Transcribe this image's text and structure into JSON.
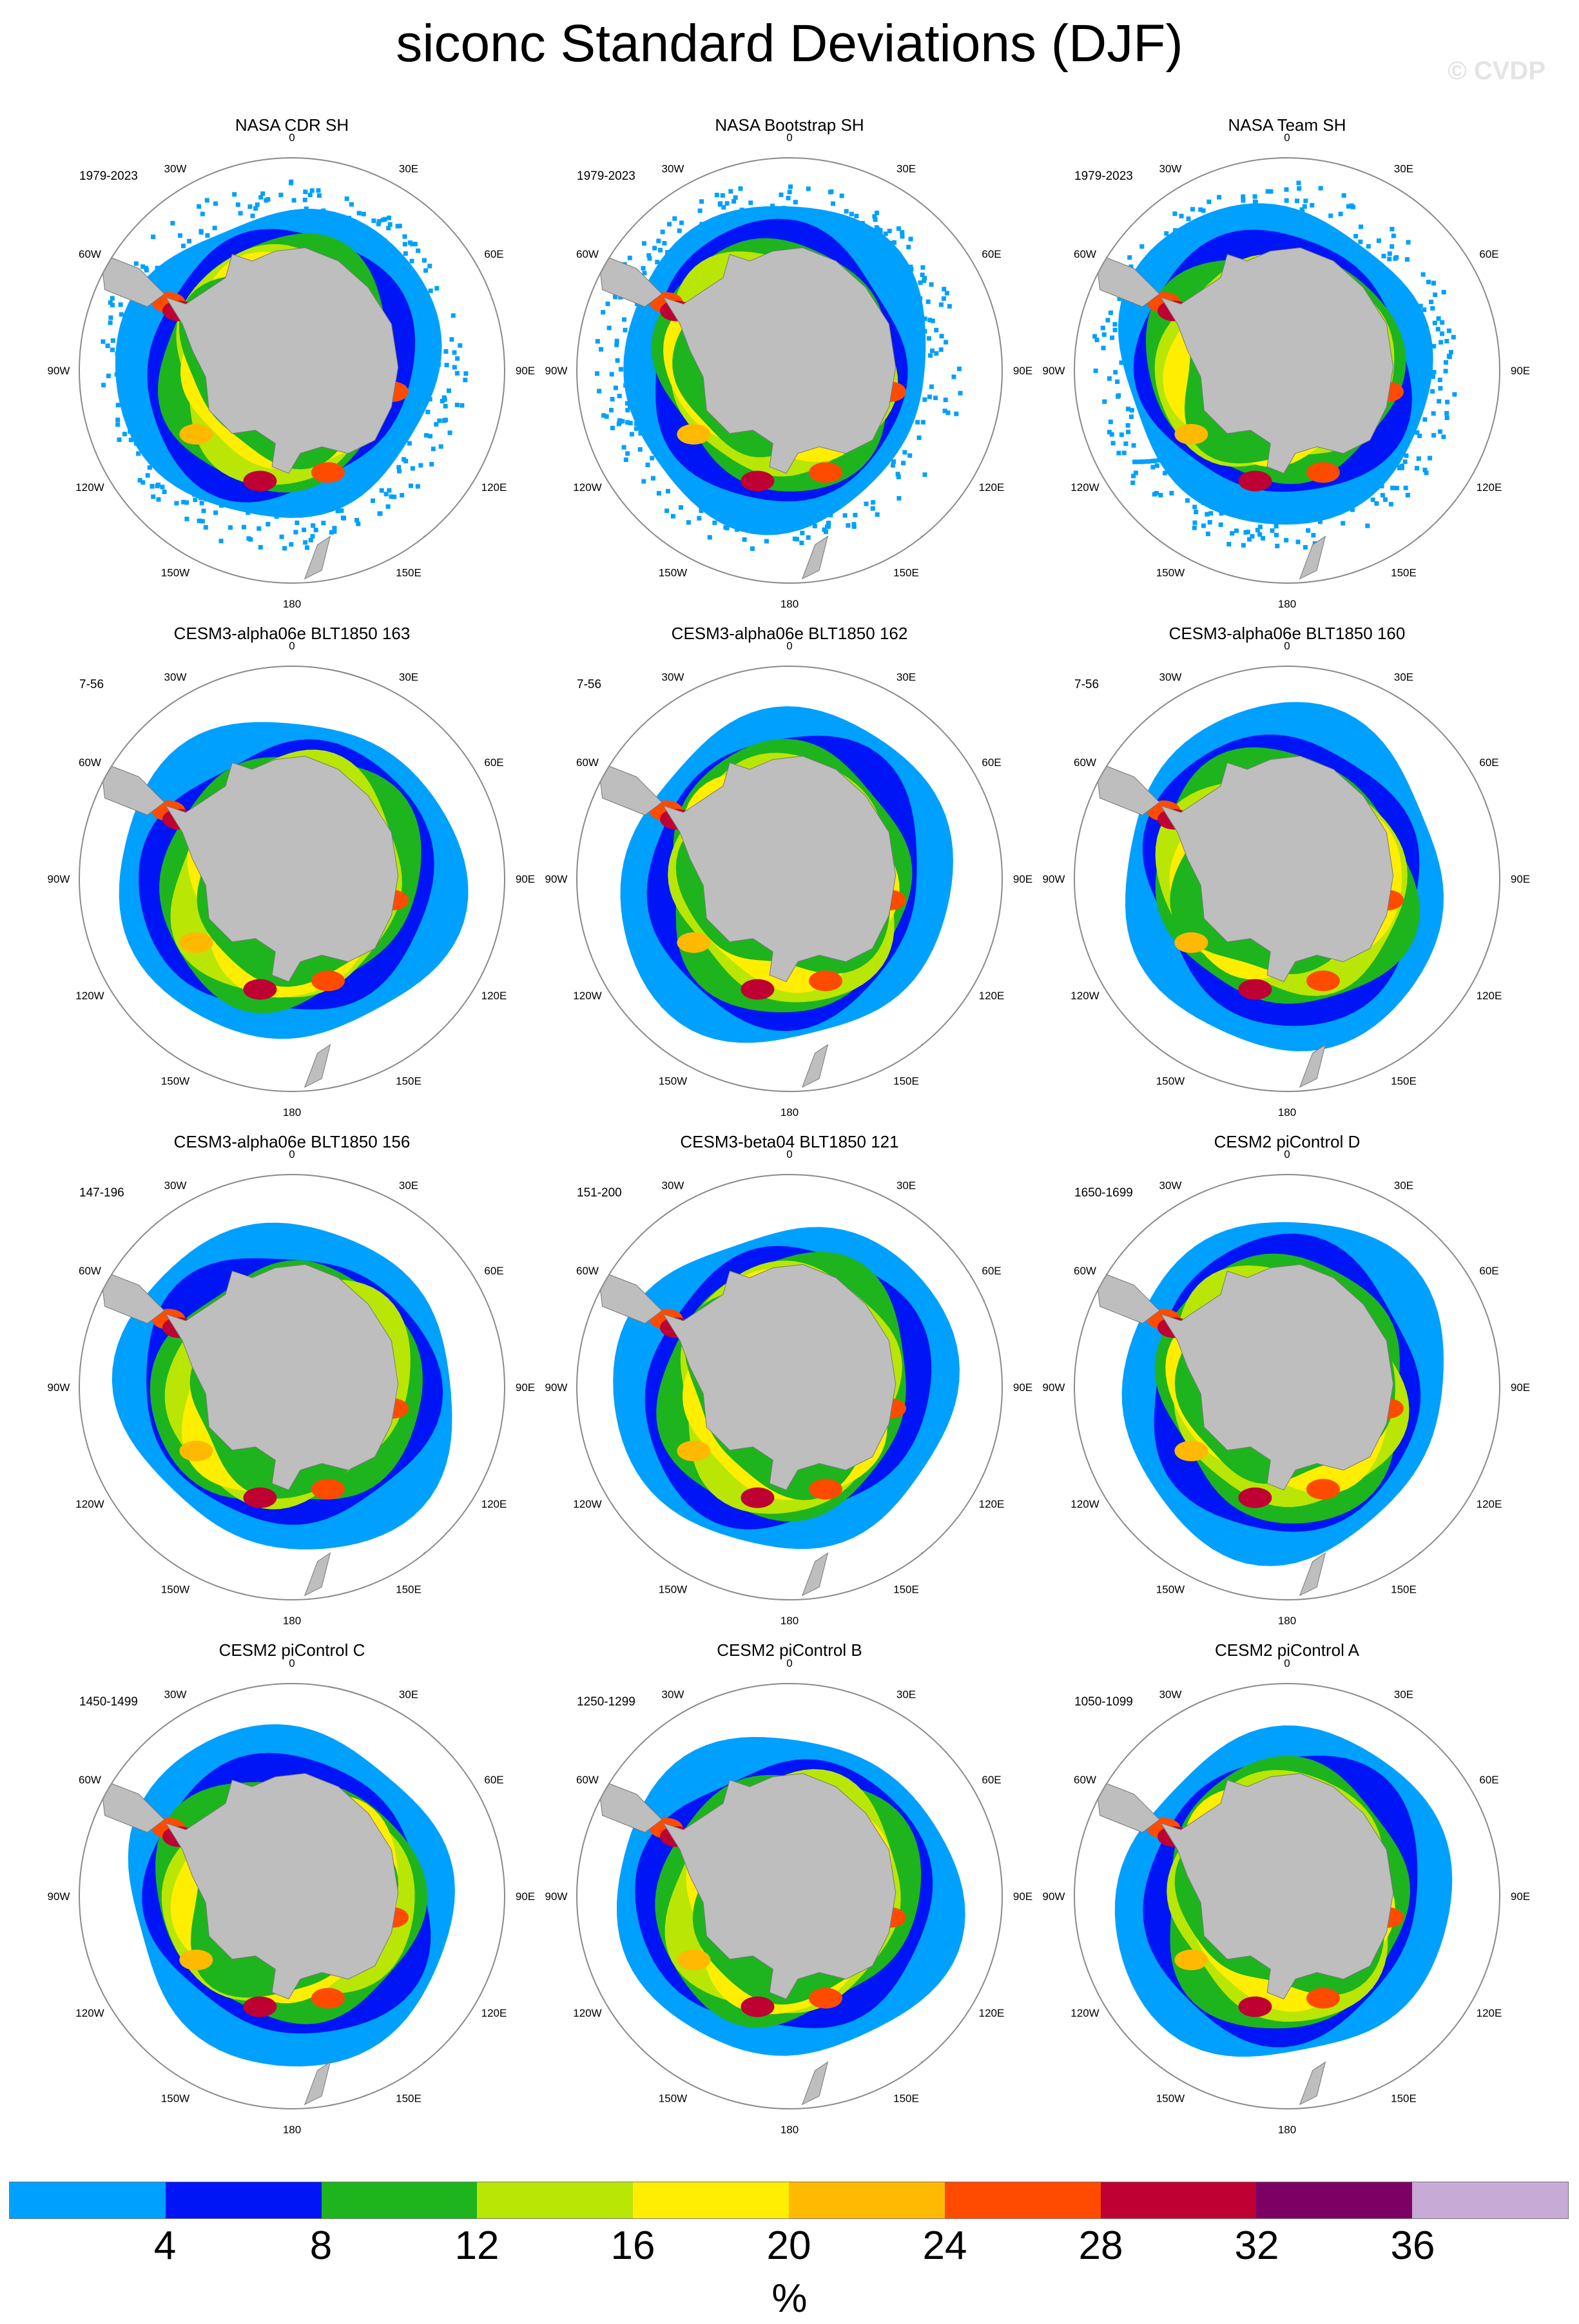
{
  "title": "siconc Standard Deviations (DJF)",
  "watermark": "© CVDP",
  "longitude_labels": [
    "0",
    "30E",
    "60E",
    "90E",
    "120E",
    "150E",
    "180",
    "150W",
    "120W",
    "90W",
    "60W",
    "30W"
  ],
  "panels": [
    {
      "title": "NASA CDR SH",
      "period": "1979-2023",
      "kind": "obs"
    },
    {
      "title": "NASA Bootstrap SH",
      "period": "1979-2023",
      "kind": "obs"
    },
    {
      "title": "NASA Team SH",
      "period": "1979-2023",
      "kind": "obs"
    },
    {
      "title": "CESM3-alpha06e BLT1850 163",
      "period": "7-56",
      "kind": "model"
    },
    {
      "title": "CESM3-alpha06e BLT1850 162",
      "period": "7-56",
      "kind": "model"
    },
    {
      "title": "CESM3-alpha06e BLT1850 160",
      "period": "7-56",
      "kind": "model"
    },
    {
      "title": "CESM3-alpha06e BLT1850 156",
      "period": "147-196",
      "kind": "model"
    },
    {
      "title": "CESM3-beta04 BLT1850 121",
      "period": "151-200",
      "kind": "model"
    },
    {
      "title": "CESM2 piControl D",
      "period": "1650-1699",
      "kind": "model"
    },
    {
      "title": "CESM2 piControl C",
      "period": "1450-1499",
      "kind": "model"
    },
    {
      "title": "CESM2 piControl B",
      "period": "1250-1299",
      "kind": "model"
    },
    {
      "title": "CESM2 piControl A",
      "period": "1050-1099",
      "kind": "model"
    }
  ],
  "colorbar": {
    "colors": [
      "#00a0ff",
      "#0015f5",
      "#1eb41e",
      "#b9e605",
      "#ffee00",
      "#ffb900",
      "#ff4b00",
      "#be0032",
      "#7d0064",
      "#c8aad7"
    ],
    "ticks": [
      "4",
      "8",
      "12",
      "16",
      "20",
      "24",
      "28",
      "32",
      "36"
    ],
    "unit": "%"
  },
  "land_color": "#bebebe"
}
